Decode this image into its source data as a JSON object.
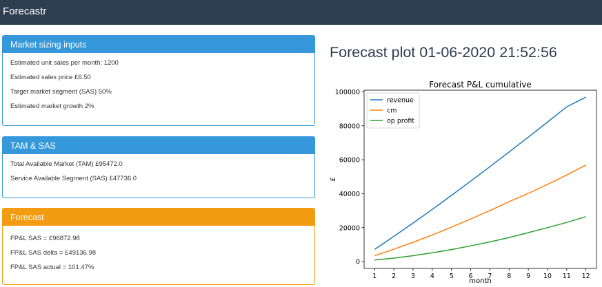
{
  "app": {
    "brand": "Forecastr"
  },
  "market_inputs": {
    "header": "Market sizing inputs",
    "rows": [
      "Estimated unit sales per month: 1200",
      "Estimated sales price £6.50",
      "Target market segment (SAS) 50%",
      "Estimated market growth 2%"
    ]
  },
  "tam_sas": {
    "header": "TAM & SAS",
    "rows": [
      "Total Available Market (TAM) £95472.0",
      "Service Available Segment (SAS) £47736.0"
    ]
  },
  "forecast": {
    "header": "Forecast",
    "rows": [
      "FP&L SAS = £96872.98",
      "FP&L SAS delta = £49136.98",
      "FP&L SAS actual = 101.47%"
    ]
  },
  "plot": {
    "heading": "Forecast plot 01-06-2020 21:52:56"
  },
  "chart_data": {
    "type": "line",
    "title": "Forecast P&L cumulative",
    "xlabel": "month",
    "ylabel": "£",
    "x": [
      1,
      2,
      3,
      4,
      5,
      6,
      7,
      8,
      9,
      10,
      11,
      12
    ],
    "xlim": [
      0.45,
      12.55
    ],
    "ylim": [
      -4000,
      101000
    ],
    "yticks": [
      0,
      20000,
      40000,
      60000,
      80000,
      100000
    ],
    "legend_position": "top-left",
    "grid": false,
    "series": [
      {
        "name": "revenue",
        "color": "#1f77b4",
        "values": [
          7200,
          14900,
          22700,
          30800,
          39000,
          47400,
          55900,
          64600,
          73300,
          82200,
          91200,
          96900
        ]
      },
      {
        "name": "cm",
        "color": "#ff7f0e",
        "values": [
          3500,
          7300,
          11400,
          15700,
          20300,
          25100,
          30100,
          35300,
          40200,
          45500,
          51000,
          56900
        ]
      },
      {
        "name": "op profit",
        "color": "#2ca02c",
        "values": [
          1000,
          2100,
          3500,
          5200,
          7100,
          9300,
          11600,
          14200,
          17100,
          20000,
          23100,
          26500
        ]
      }
    ]
  }
}
